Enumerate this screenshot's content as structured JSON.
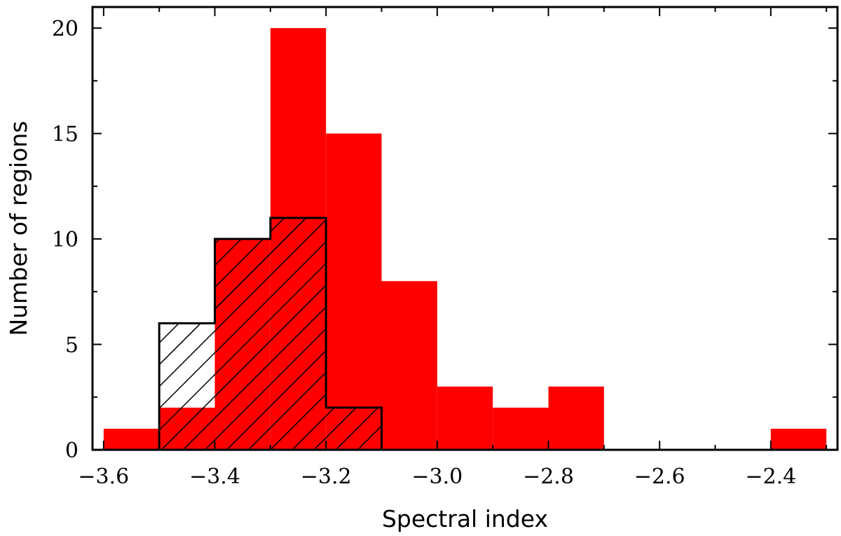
{
  "chart_data": {
    "type": "bar",
    "xlabel": "Spectral index",
    "ylabel": "Number of regions",
    "xlim": [
      -3.62,
      -2.28
    ],
    "ylim": [
      0,
      21
    ],
    "x_ticks": [
      -3.6,
      -3.4,
      -3.2,
      -3.0,
      -2.8,
      -2.6,
      -2.4
    ],
    "x_tick_labels": [
      "−3.6",
      "−3.4",
      "−3.2",
      "−3.0",
      "−2.8",
      "−2.6",
      "−2.4"
    ],
    "y_ticks": [
      0,
      5,
      10,
      15,
      20
    ],
    "y_tick_labels": [
      "0",
      "5",
      "10",
      "15",
      "20"
    ],
    "grid": false,
    "legend": "none",
    "series": [
      {
        "style": "filled",
        "color": "#ff0000",
        "bin_edges": [
          -3.6,
          -3.5,
          -3.4,
          -3.3,
          -3.2,
          -3.1,
          -3.0,
          -2.9,
          -2.8,
          -2.7,
          -2.6,
          -2.5,
          -2.4,
          -2.3
        ],
        "counts": [
          1,
          2,
          10,
          20,
          15,
          8,
          3,
          2,
          3,
          0,
          0,
          0,
          1
        ]
      },
      {
        "style": "hatched-step",
        "color": "#000000",
        "bin_edges": [
          -3.5,
          -3.4,
          -3.3,
          -3.2,
          -3.1
        ],
        "counts": [
          6,
          10,
          11,
          2
        ]
      }
    ]
  }
}
